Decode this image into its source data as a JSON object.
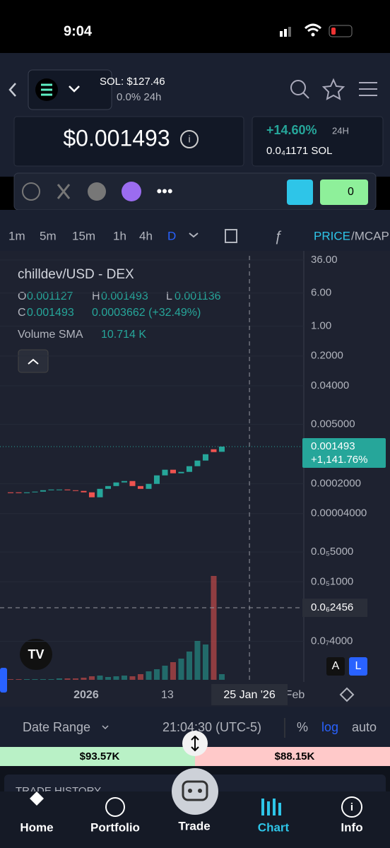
{
  "status": {
    "time": "9:04"
  },
  "header": {
    "sol_price": "SOL: $127.46",
    "sol_change": "0.0% 24h"
  },
  "price_card": {
    "price": "$0.001493",
    "change": "+14.60%",
    "change_period": "24H",
    "sol_value": "0.0₄1171 SOL"
  },
  "toolbar": {
    "badge": "0"
  },
  "timeframes": [
    "1m",
    "5m",
    "15m",
    "1h",
    "4h",
    "D"
  ],
  "chart_mode": {
    "price": "PRICE",
    "mcap": "/MCAP"
  },
  "legend": {
    "symbol": "chilldev/USD - DEX",
    "o_label": "O",
    "o": "0.001127",
    "h_label": "H",
    "h": "0.001493",
    "l_label": "L",
    "l": "0.001136",
    "c_label": "C",
    "c": "0.001493",
    "change": "0.0003662 (+32.49%)",
    "volume_label": "Volume SMA",
    "volume_value": "10.714 K"
  },
  "chart_data": {
    "type": "candlestick",
    "log_scale": true,
    "up_color": "#26a69a",
    "down_color": "#ef5350",
    "categories": [
      null,
      null,
      null,
      null,
      null,
      null,
      null,
      null,
      null,
      null,
      null,
      null,
      null,
      null,
      null,
      null,
      null,
      null,
      null,
      null,
      null,
      null,
      null,
      null,
      null,
      null,
      null
    ],
    "open": [
      0.000126,
      0.000126,
      0.000121,
      0.000126,
      0.000131,
      0.000141,
      0.000147,
      0.000147,
      0.000141,
      0.000136,
      0.000126,
      9.64e-05,
      0.000152,
      0.000177,
      0.000215,
      0.000232,
      0.000177,
      0.000152,
      0.000199,
      0.000315,
      0.000428,
      0.000353,
      0.000381,
      0.000518,
      0.000702,
      0.001294,
      0.001127
    ],
    "close": [
      0.000121,
      0.000121,
      0.000126,
      0.000131,
      0.000141,
      0.000147,
      0.000147,
      0.000141,
      0.000136,
      0.000126,
      9.64e-05,
      0.000152,
      0.000177,
      0.000215,
      0.000232,
      0.000177,
      0.000152,
      0.000199,
      0.000315,
      0.000428,
      0.000353,
      0.000381,
      0.000518,
      0.000702,
      0.000989,
      0.001109,
      0.001493
    ],
    "volume": [
      1,
      1,
      1,
      1,
      1,
      1,
      2,
      2,
      2,
      3,
      5,
      6,
      4,
      5,
      6,
      5,
      8,
      12,
      15,
      20,
      25,
      30,
      40,
      55,
      50,
      147,
      8
    ],
    "xlim": [
      -0.26,
      36.09
    ],
    "xticks": [
      {
        "value": 9.3,
        "label": "2026"
      },
      {
        "value": 19.3,
        "label": "13"
      },
      {
        "value": 35,
        "label": "Feb"
      }
    ],
    "ylim": [
      5e-09,
      45
    ],
    "yticks": [
      {
        "value": 36,
        "label": "36.00"
      },
      {
        "value": 6,
        "label": "6.00"
      },
      {
        "value": 1,
        "label": "1.00"
      },
      {
        "value": 0.2,
        "label": "0.2000"
      },
      {
        "value": 0.04,
        "label": "0.04000"
      },
      {
        "value": 0.005,
        "label": "0.005000"
      },
      {
        "value": 0.0002,
        "label": "0.0002000"
      },
      {
        "value": 4e-05,
        "label": "0.00004000"
      },
      {
        "value": 5e-06,
        "label": "0.0₅5000"
      },
      {
        "value": 1e-06,
        "label": "0.0₅1000"
      },
      {
        "value": 4e-08,
        "label": "0.0₇4000"
      }
    ],
    "last_price": {
      "value": 0.001493,
      "label": "0.001493",
      "change": "+1,141.76%"
    },
    "crosshair": {
      "x": {
        "value": 29.4,
        "label": "25 Jan '26"
      },
      "y": {
        "value": 2.456e-07,
        "label": "0.0₆2456"
      }
    },
    "scale_buttons": [
      "A",
      "L"
    ]
  },
  "controls": {
    "date_range": "Date Range",
    "time": "21:04:30 (UTC-5)",
    "percent": "%",
    "log": "log",
    "auto": "auto"
  },
  "trade_bar": {
    "buy": "$93.57K",
    "sell": "$88.15K"
  },
  "trade_history": "TRADE HISTORY",
  "nav": [
    "Home",
    "Portfolio",
    "Trade",
    "Chart",
    "Info"
  ]
}
